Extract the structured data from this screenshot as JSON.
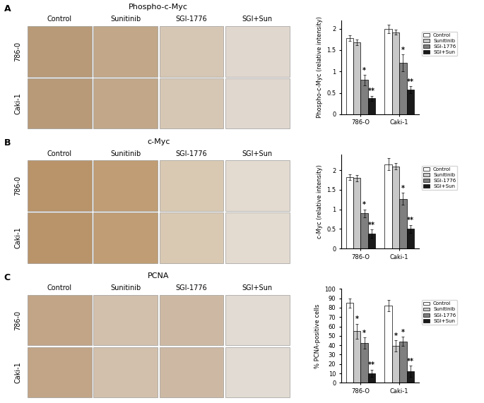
{
  "chart_data": [
    {
      "type": "bar",
      "y_label": "Phospho-c-Myc (relative intensity)",
      "categories": [
        "786-O",
        "Caki-1"
      ],
      "ylim": [
        0,
        2.2
      ],
      "yticks": [
        0,
        0.5,
        1,
        1.5,
        2
      ],
      "legend": "right",
      "series": [
        {
          "name": "Control",
          "color": "#ffffff",
          "values": [
            1.78,
            2.0
          ],
          "errors": [
            0.07,
            0.1
          ],
          "significance": [
            null,
            null
          ]
        },
        {
          "name": "Sunitinib",
          "color": "#c8c8c8",
          "values": [
            1.68,
            1.92
          ],
          "errors": [
            0.07,
            0.06
          ],
          "significance": [
            null,
            null
          ]
        },
        {
          "name": "SGI-1776",
          "color": "#7f7f7f",
          "values": [
            0.8,
            1.2
          ],
          "errors": [
            0.12,
            0.2
          ],
          "significance": [
            "*",
            "*"
          ]
        },
        {
          "name": "SGI+Sun",
          "color": "#1a1a1a",
          "values": [
            0.37,
            0.57
          ],
          "errors": [
            0.06,
            0.08
          ],
          "significance": [
            "**",
            "**"
          ]
        }
      ]
    },
    {
      "type": "bar",
      "y_label": "c-Myc (relative intensity)",
      "categories": [
        "786-O",
        "Caki-1"
      ],
      "ylim": [
        0,
        2.4
      ],
      "yticks": [
        0,
        0.5,
        1,
        1.5,
        2
      ],
      "legend": "right",
      "series": [
        {
          "name": "Control",
          "color": "#ffffff",
          "values": [
            1.82,
            2.15
          ],
          "errors": [
            0.07,
            0.15
          ],
          "significance": [
            null,
            null
          ]
        },
        {
          "name": "Sunitinib",
          "color": "#c8c8c8",
          "values": [
            1.8,
            2.1
          ],
          "errors": [
            0.08,
            0.08
          ],
          "significance": [
            null,
            null
          ]
        },
        {
          "name": "SGI-1776",
          "color": "#7f7f7f",
          "values": [
            0.9,
            1.27
          ],
          "errors": [
            0.1,
            0.15
          ],
          "significance": [
            "*",
            "*"
          ]
        },
        {
          "name": "SGI+Sun",
          "color": "#1a1a1a",
          "values": [
            0.38,
            0.5
          ],
          "errors": [
            0.1,
            0.1
          ],
          "significance": [
            "**",
            "**"
          ]
        }
      ]
    },
    {
      "type": "bar",
      "y_label": "% PCNA-positive cells",
      "categories": [
        "786-O",
        "Caki-1"
      ],
      "ylim": [
        0,
        100
      ],
      "yticks": [
        0,
        10,
        20,
        30,
        40,
        50,
        60,
        70,
        80,
        90,
        100
      ],
      "legend": "right",
      "series": [
        {
          "name": "Control",
          "color": "#ffffff",
          "values": [
            85,
            82
          ],
          "errors": [
            5,
            6
          ],
          "significance": [
            null,
            null
          ]
        },
        {
          "name": "Sunitinib",
          "color": "#c8c8c8",
          "values": [
            55,
            39
          ],
          "errors": [
            8,
            6
          ],
          "significance": [
            "*",
            "*"
          ]
        },
        {
          "name": "SGI-1776",
          "color": "#7f7f7f",
          "values": [
            42,
            44
          ],
          "errors": [
            6,
            5
          ],
          "significance": [
            "*",
            "*"
          ]
        },
        {
          "name": "SGI+Sun",
          "color": "#1a1a1a",
          "values": [
            10,
            12
          ],
          "errors": [
            4,
            6
          ],
          "significance": [
            "**",
            "**"
          ]
        }
      ]
    }
  ],
  "image_panels": [
    {
      "label": "A",
      "title": "Phospho-c-Myc",
      "columns": [
        "Control",
        "Sunitinib",
        "SGI-1776",
        "SGI+Sun"
      ],
      "rows": [
        "786-0",
        "Caki-1"
      ]
    },
    {
      "label": "B",
      "title": "c-Myc",
      "columns": [
        "Control",
        "Sunitinib",
        "SGI-1776",
        "SGI+Sun"
      ],
      "rows": [
        "786-0",
        "Caki-1"
      ]
    },
    {
      "label": "C",
      "title": "PCNA",
      "columns": [
        "Control",
        "Sunitinib",
        "SGI-1776",
        "SGI+Sun"
      ],
      "rows": [
        "786-0",
        "Caki-1"
      ]
    }
  ]
}
